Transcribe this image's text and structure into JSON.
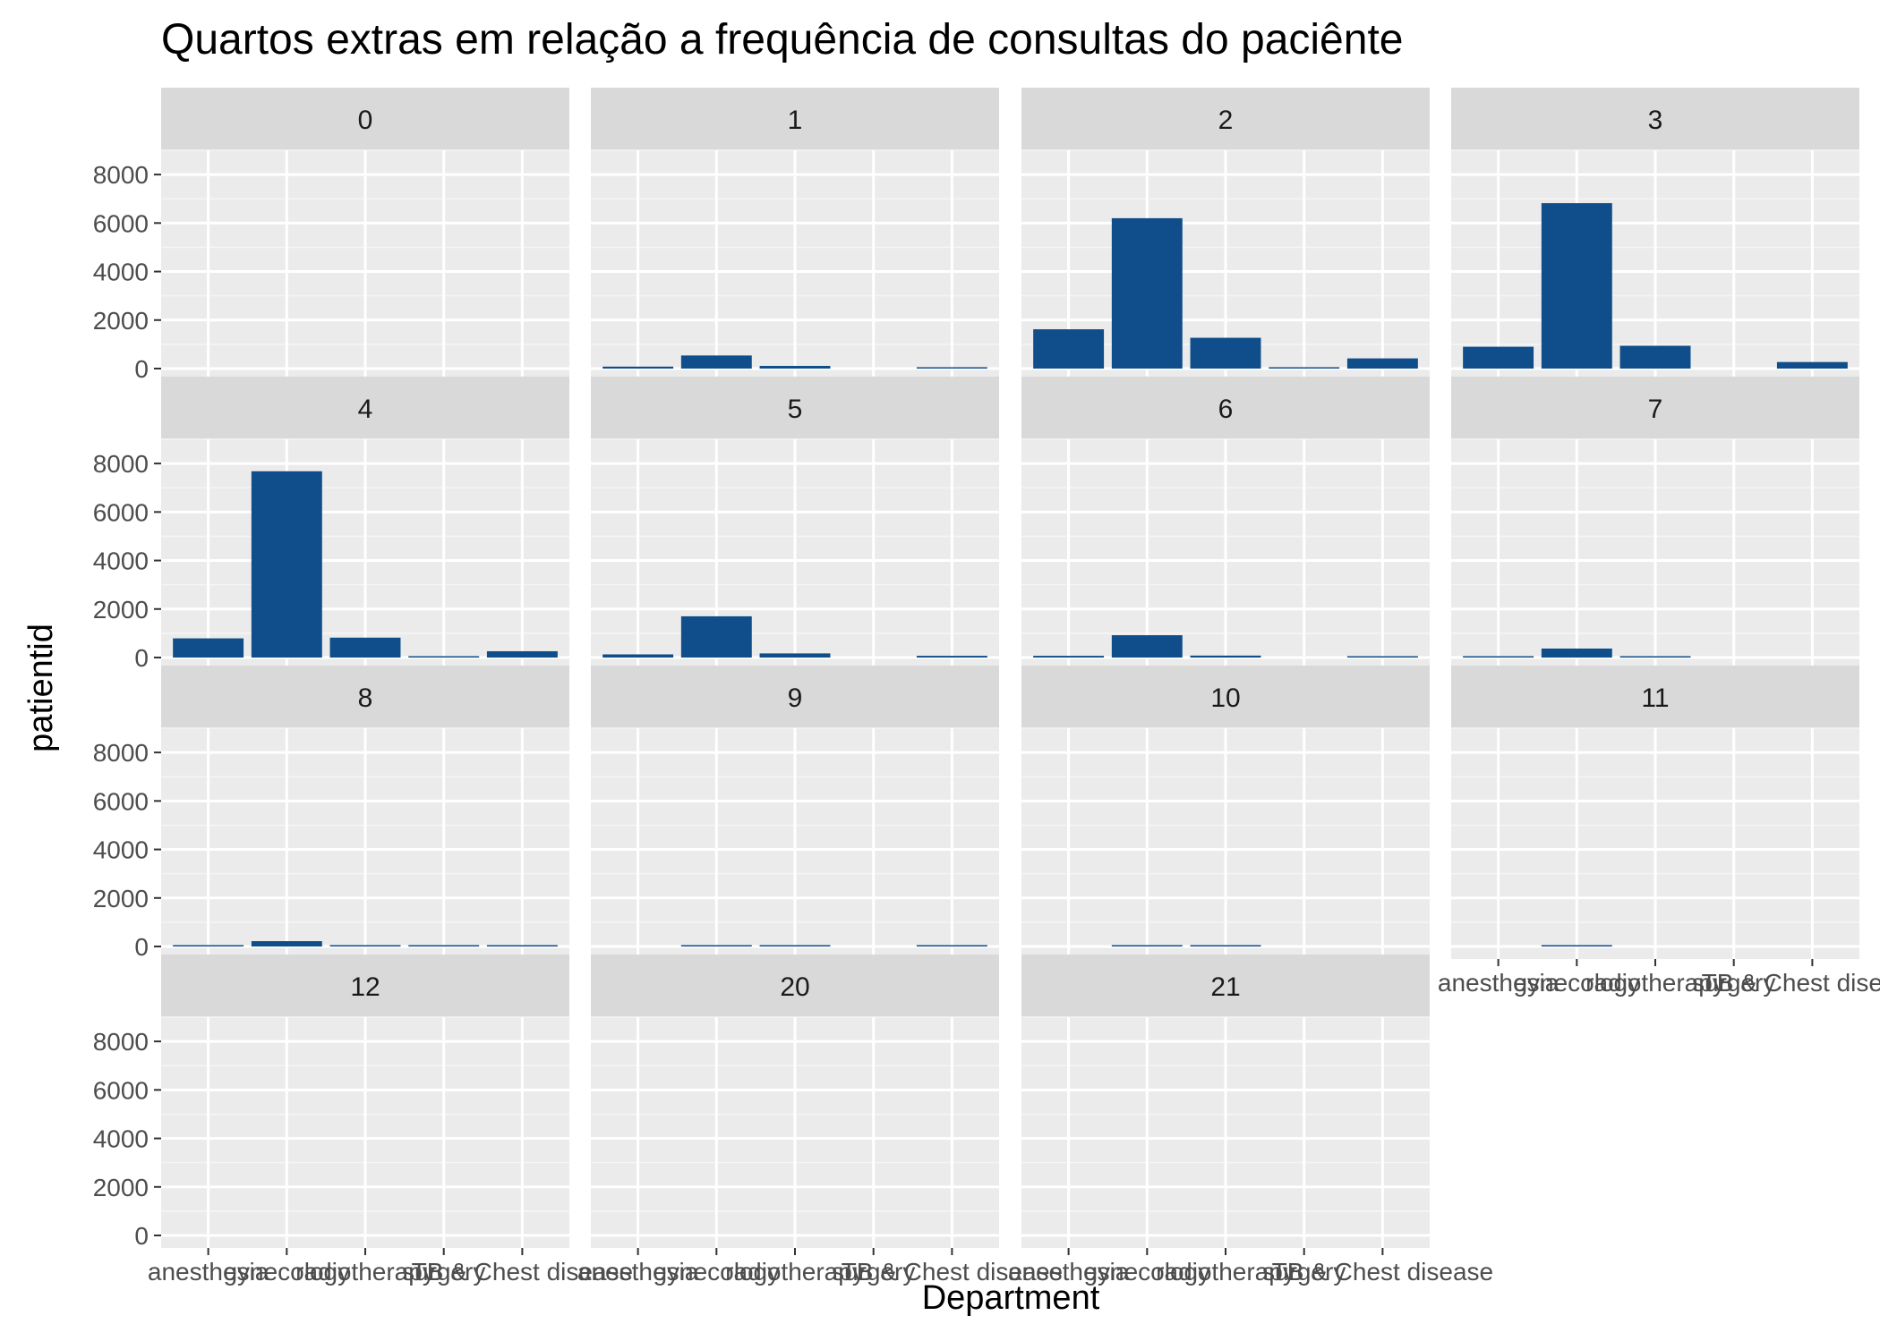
{
  "chart_data": {
    "type": "bar",
    "title": "Quartos extras em relação a frequência de consultas do paciênte",
    "xlabel": "Department",
    "ylabel": "patientid",
    "ylim": [
      0,
      9000
    ],
    "yticks": [
      0,
      2000,
      4000,
      6000,
      8000
    ],
    "categories": [
      "anesthesia",
      "gynecology",
      "radiotherapy",
      "surgery",
      "TB & Chest disease"
    ],
    "bar_color": "#0f4e8a",
    "panel_bg": "#ebebeb",
    "strip_bg": "#d9d9d9",
    "grid": true,
    "facets": [
      {
        "label": "0",
        "values": [
          0,
          0,
          0,
          0,
          0
        ]
      },
      {
        "label": "1",
        "values": [
          80,
          540,
          110,
          0,
          40
        ]
      },
      {
        "label": "2",
        "values": [
          1620,
          6200,
          1270,
          30,
          420
        ]
      },
      {
        "label": "3",
        "values": [
          900,
          6820,
          940,
          0,
          270
        ]
      },
      {
        "label": "4",
        "values": [
          790,
          7680,
          820,
          20,
          260
        ]
      },
      {
        "label": "5",
        "values": [
          130,
          1700,
          170,
          0,
          70
        ]
      },
      {
        "label": "6",
        "values": [
          70,
          920,
          80,
          0,
          40
        ]
      },
      {
        "label": "7",
        "values": [
          30,
          370,
          40,
          0,
          0
        ]
      },
      {
        "label": "8",
        "values": [
          20,
          220,
          20,
          10,
          10
        ]
      },
      {
        "label": "9",
        "values": [
          0,
          40,
          20,
          0,
          20
        ]
      },
      {
        "label": "10",
        "values": [
          0,
          20,
          20,
          0,
          0
        ]
      },
      {
        "label": "11",
        "values": [
          0,
          20,
          0,
          0,
          0
        ]
      },
      {
        "label": "12",
        "values": [
          0,
          0,
          0,
          0,
          0
        ]
      },
      {
        "label": "20",
        "values": [
          0,
          0,
          0,
          0,
          0
        ]
      },
      {
        "label": "21",
        "values": [
          0,
          0,
          0,
          0,
          0
        ]
      }
    ]
  }
}
